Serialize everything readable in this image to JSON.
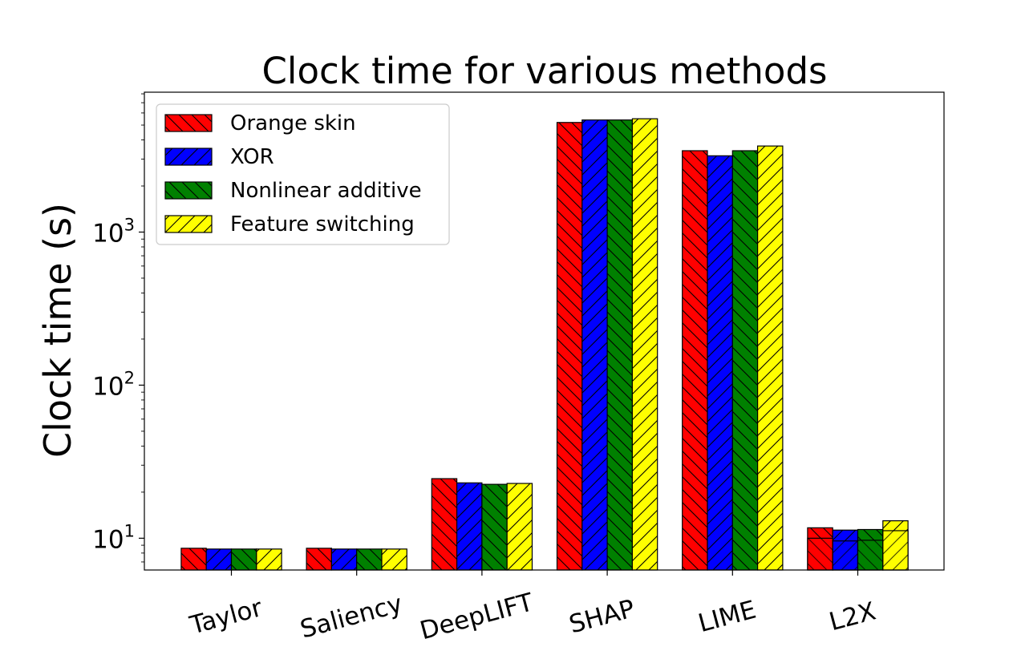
{
  "chart_data": {
    "type": "bar",
    "title": "Clock time for various methods",
    "xlabel": "",
    "ylabel": "Clock time (s)",
    "y_scale": "log",
    "ylim": [
      6.2,
      8200
    ],
    "y_tick_labels": [
      {
        "value": 10,
        "label": "10",
        "exponent": "1"
      },
      {
        "value": 100,
        "label": "10",
        "exponent": "2"
      },
      {
        "value": 1000,
        "label": "10",
        "exponent": "3"
      }
    ],
    "categories": [
      "Taylor",
      "Saliency",
      "DeepLIFT",
      "SHAP",
      "LIME",
      "L2X"
    ],
    "series": [
      {
        "name": "Orange skin",
        "color": "#ff0000",
        "hatch": "backslash",
        "values": [
          8.6,
          8.6,
          24.5,
          5200,
          3400,
          11.7
        ]
      },
      {
        "name": "XOR",
        "color": "#0000ff",
        "hatch": "slash",
        "values": [
          8.5,
          8.5,
          23.0,
          5400,
          3150,
          11.3
        ]
      },
      {
        "name": "Nonlinear additive",
        "color": "#008000",
        "hatch": "backslash",
        "values": [
          8.5,
          8.5,
          22.5,
          5400,
          3400,
          11.4
        ]
      },
      {
        "name": "Feature switching",
        "color": "#ffff00",
        "hatch": "slash",
        "values": [
          8.5,
          8.5,
          22.8,
          5500,
          3650,
          13.0
        ]
      }
    ],
    "l2x_inner_segments": [
      10.0,
      9.6,
      9.7,
      11.2
    ],
    "legend_position": "top-left",
    "grid": false
  }
}
